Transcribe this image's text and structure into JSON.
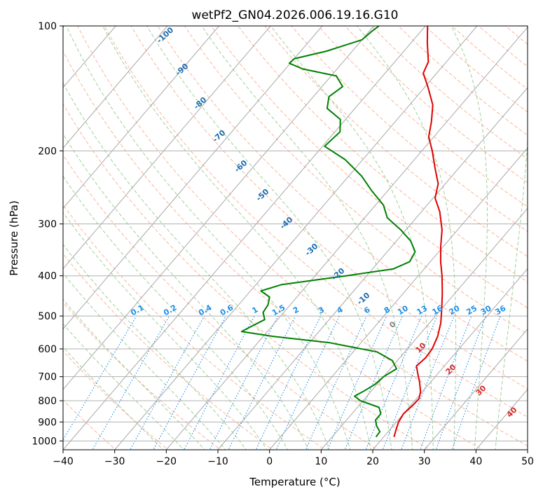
{
  "chart_data": {
    "type": "line",
    "title": "wetPf2_GN04.2026.006.19.16.G10",
    "xlabel": "Temperature (°C)",
    "ylabel": "Pressure (hPa)",
    "xlim": [
      -40,
      50
    ],
    "ylim": [
      1050,
      100
    ],
    "y_scale": "log",
    "skew": true,
    "grid": true,
    "x_ticks": [
      -40,
      -30,
      -20,
      -10,
      0,
      10,
      20,
      30,
      40,
      50
    ],
    "y_ticks": [
      100,
      200,
      300,
      400,
      500,
      600,
      700,
      800,
      900,
      1000
    ],
    "series": [
      {
        "color": "#e00000",
        "points": [
          {
            "p": 978,
            "t": 22.0
          },
          {
            "p": 940,
            "t": 21.2
          },
          {
            "p": 900,
            "t": 20.4
          },
          {
            "p": 860,
            "t": 20.0
          },
          {
            "p": 820,
            "t": 20.4
          },
          {
            "p": 790,
            "t": 20.5
          },
          {
            "p": 760,
            "t": 19.6
          },
          {
            "p": 720,
            "t": 17.8
          },
          {
            "p": 690,
            "t": 16.2
          },
          {
            "p": 660,
            "t": 14.6
          },
          {
            "p": 630,
            "t": 15.0
          },
          {
            "p": 600,
            "t": 14.8
          },
          {
            "p": 560,
            "t": 13.8
          },
          {
            "p": 520,
            "t": 12.2
          },
          {
            "p": 480,
            "t": 10.0
          },
          {
            "p": 440,
            "t": 7.5
          },
          {
            "p": 400,
            "t": 4.6
          },
          {
            "p": 370,
            "t": 2.0
          },
          {
            "p": 340,
            "t": -0.5
          },
          {
            "p": 310,
            "t": -3.0
          },
          {
            "p": 280,
            "t": -6.5
          },
          {
            "p": 260,
            "t": -9.6
          },
          {
            "p": 240,
            "t": -11.4
          },
          {
            "p": 220,
            "t": -14.6
          },
          {
            "p": 200,
            "t": -18.0
          },
          {
            "p": 185,
            "t": -21.0
          },
          {
            "p": 170,
            "t": -23.0
          },
          {
            "p": 155,
            "t": -25.5
          },
          {
            "p": 140,
            "t": -29.5
          },
          {
            "p": 130,
            "t": -32.6
          },
          {
            "p": 122,
            "t": -33.5
          },
          {
            "p": 110,
            "t": -36.8
          },
          {
            "p": 100,
            "t": -39.6
          }
        ]
      },
      {
        "color": "#008000",
        "points": [
          {
            "p": 978,
            "t": 18.5
          },
          {
            "p": 950,
            "t": 18.4
          },
          {
            "p": 920,
            "t": 16.8
          },
          {
            "p": 890,
            "t": 15.6
          },
          {
            "p": 860,
            "t": 15.6
          },
          {
            "p": 830,
            "t": 14.2
          },
          {
            "p": 800,
            "t": 9.5
          },
          {
            "p": 780,
            "t": 7.6
          },
          {
            "p": 760,
            "t": 8.5
          },
          {
            "p": 730,
            "t": 9.6
          },
          {
            "p": 700,
            "t": 10.0
          },
          {
            "p": 670,
            "t": 11.2
          },
          {
            "p": 640,
            "t": 9.0
          },
          {
            "p": 610,
            "t": 4.6
          },
          {
            "p": 580,
            "t": -6.0
          },
          {
            "p": 560,
            "t": -18.0
          },
          {
            "p": 545,
            "t": -25.0
          },
          {
            "p": 530,
            "t": -24.0
          },
          {
            "p": 510,
            "t": -22.5
          },
          {
            "p": 490,
            "t": -24.0
          },
          {
            "p": 470,
            "t": -24.3
          },
          {
            "p": 450,
            "t": -25.3
          },
          {
            "p": 435,
            "t": -28.0
          },
          {
            "p": 420,
            "t": -25.0
          },
          {
            "p": 400,
            "t": -14.0
          },
          {
            "p": 385,
            "t": -6.0
          },
          {
            "p": 370,
            "t": -4.0
          },
          {
            "p": 350,
            "t": -4.6
          },
          {
            "p": 330,
            "t": -7.2
          },
          {
            "p": 310,
            "t": -11.0
          },
          {
            "p": 290,
            "t": -15.6
          },
          {
            "p": 270,
            "t": -18.5
          },
          {
            "p": 250,
            "t": -23.0
          },
          {
            "p": 230,
            "t": -27.5
          },
          {
            "p": 210,
            "t": -33.4
          },
          {
            "p": 195,
            "t": -39.6
          },
          {
            "p": 180,
            "t": -39.0
          },
          {
            "p": 168,
            "t": -41.0
          },
          {
            "p": 158,
            "t": -45.4
          },
          {
            "p": 148,
            "t": -47.0
          },
          {
            "p": 140,
            "t": -46.0
          },
          {
            "p": 132,
            "t": -49.0
          },
          {
            "p": 127,
            "t": -56.6
          },
          {
            "p": 123,
            "t": -60.2
          },
          {
            "p": 120,
            "t": -60.0
          },
          {
            "p": 115,
            "t": -55.0
          },
          {
            "p": 108,
            "t": -50.0
          },
          {
            "p": 103,
            "t": -49.5
          },
          {
            "p": 100,
            "t": -49.0
          }
        ]
      }
    ],
    "dry_adiabat_labels": [
      "-100",
      "-90",
      "-80",
      "-70",
      "-60",
      "-50",
      "-40",
      "-30",
      "-20",
      "-10"
    ],
    "mixing_ratio_labels": [
      "0.1",
      "0.2",
      "0.4",
      "0.6",
      "1",
      "1.5",
      "2",
      "3",
      "4",
      "6",
      "8",
      "10",
      "13",
      "16",
      "20",
      "25",
      "30",
      "36"
    ],
    "moist_adiabat_labels": [
      "0",
      "10",
      "20",
      "30",
      "40"
    ],
    "colors": {
      "temperature": "#e00000",
      "dewpoint": "#008000",
      "dry_adiabat_label": "#1f6eb0",
      "mixing_ratio": "#1e8fe8",
      "moist_adiabat_label": "#d62728",
      "zero_label": "#808080",
      "dry_adiabat_line": "#fbb49a",
      "moist_adiabat_line": "#9fd09a",
      "isotherm": "#808080",
      "special_line": "#d6bc94"
    }
  }
}
